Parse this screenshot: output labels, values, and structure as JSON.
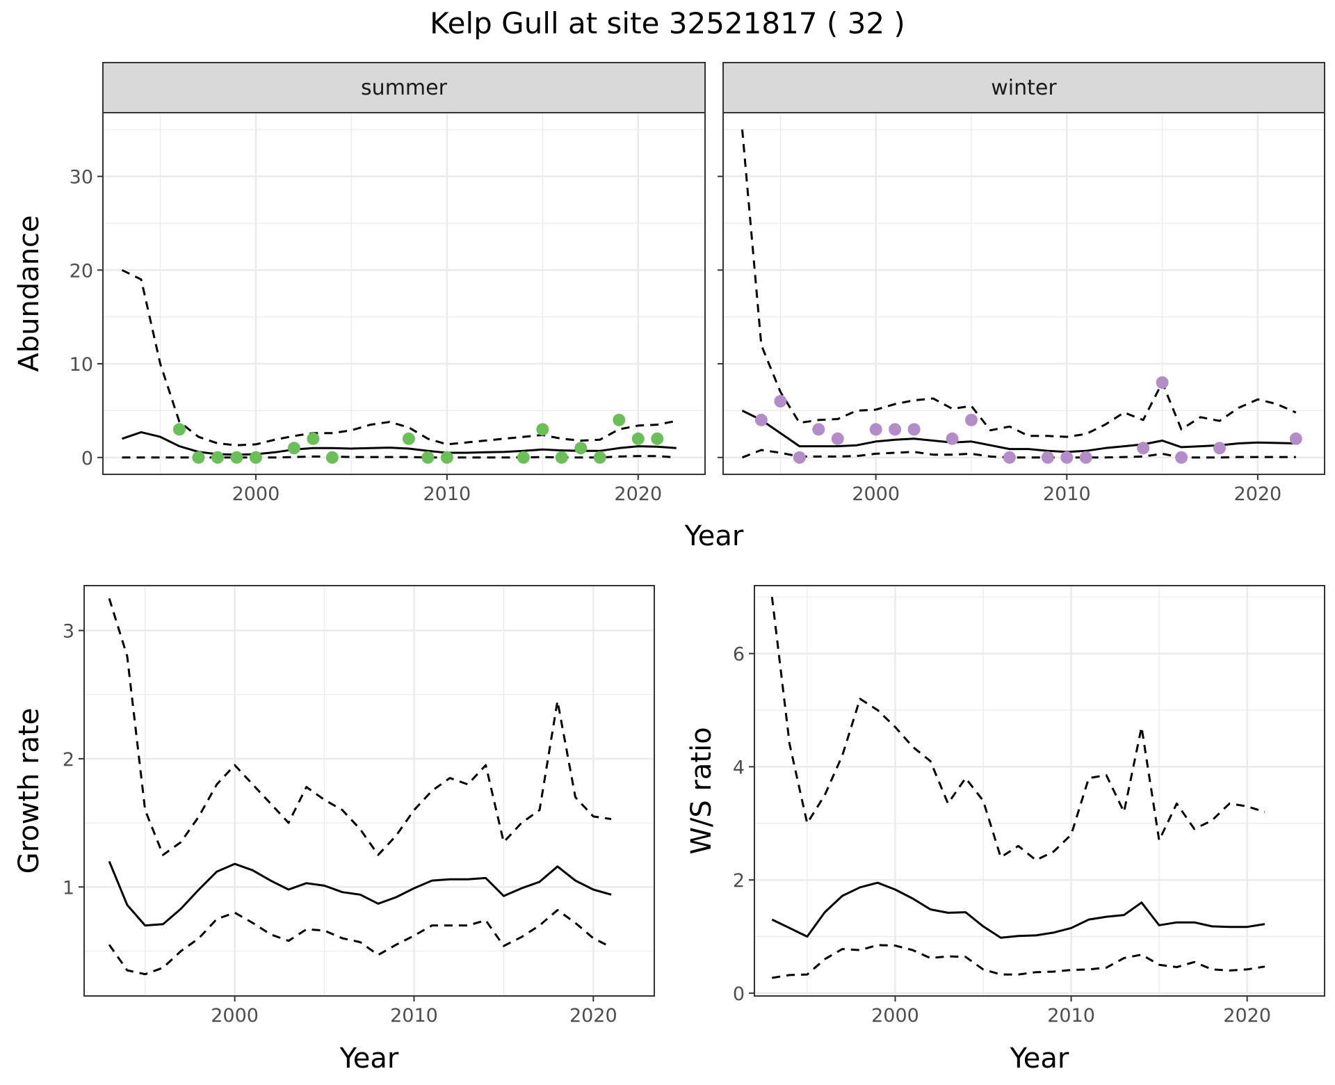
{
  "title": "Kelp Gull at site 32521817 ( 32 )",
  "colors": {
    "summer_points": "#6bbf59",
    "winter_points": "#b48cc8",
    "lines": "#000000",
    "grid": "#ebebeb",
    "strip": "#d9d9d9"
  },
  "chart_data": [
    {
      "type": "line",
      "facet": "summer",
      "xlabel": "Year",
      "ylabel": "Abundance",
      "xlim": [
        1992,
        2023.5
      ],
      "ylim": [
        -1.8,
        36.8
      ],
      "xticks": [
        2000,
        2010,
        2020
      ],
      "yticks": [
        0,
        10,
        20,
        30
      ],
      "grid": true,
      "x": [
        1993,
        1994,
        1995,
        1996,
        1997,
        1998,
        1999,
        2000,
        2001,
        2002,
        2003,
        2004,
        2005,
        2006,
        2007,
        2008,
        2009,
        2010,
        2011,
        2012,
        2013,
        2014,
        2015,
        2016,
        2017,
        2018,
        2019,
        2020,
        2021,
        2022
      ],
      "series": [
        {
          "role": "upper",
          "style": "dashed",
          "values": [
            20,
            19,
            10,
            3.8,
            2.2,
            1.5,
            1.3,
            1.4,
            1.9,
            2.3,
            2.6,
            2.6,
            2.9,
            3.5,
            3.8,
            3.2,
            2.0,
            1.4,
            1.6,
            1.8,
            2.0,
            2.2,
            2.4,
            2.0,
            1.8,
            1.9,
            3.0,
            3.4,
            3.5,
            3.9
          ]
        },
        {
          "role": "estimate",
          "style": "solid",
          "values": [
            2.0,
            2.7,
            2.2,
            1.2,
            0.6,
            0.35,
            0.3,
            0.35,
            0.55,
            0.85,
            1.0,
            1.0,
            0.95,
            1.0,
            1.05,
            0.95,
            0.7,
            0.5,
            0.5,
            0.55,
            0.6,
            0.7,
            0.85,
            0.75,
            0.7,
            0.7,
            1.0,
            1.2,
            1.15,
            1.0
          ]
        },
        {
          "role": "lower",
          "style": "dashed",
          "values": [
            0,
            0,
            0,
            0,
            0,
            0,
            0,
            0,
            0,
            0.05,
            0.1,
            0.1,
            0.05,
            0.05,
            0.05,
            0.05,
            0,
            0,
            0,
            0,
            0,
            0,
            0.05,
            0,
            0,
            0,
            0.1,
            0.15,
            0.15,
            0
          ]
        }
      ],
      "points": {
        "x": [
          1996,
          1997,
          1998,
          1999,
          2000,
          2002,
          2003,
          2004,
          2008,
          2009,
          2010,
          2014,
          2015,
          2016,
          2017,
          2018,
          2019,
          2020,
          2021
        ],
        "y": [
          3,
          0,
          0,
          0,
          0,
          1,
          2,
          0,
          2,
          0,
          0,
          0,
          3,
          0,
          1,
          0,
          4,
          2,
          2
        ]
      }
    },
    {
      "type": "line",
      "facet": "winter",
      "xlabel": "Year",
      "ylabel": "Abundance",
      "xlim": [
        1992,
        2023.5
      ],
      "ylim": [
        -1.8,
        36.8
      ],
      "xticks": [
        2000,
        2010,
        2020
      ],
      "yticks": [
        0,
        10,
        20,
        30
      ],
      "grid": true,
      "x": [
        1993,
        1994,
        1995,
        1996,
        1997,
        1998,
        1999,
        2000,
        2001,
        2002,
        2003,
        2004,
        2005,
        2006,
        2007,
        2008,
        2009,
        2010,
        2011,
        2012,
        2013,
        2014,
        2015,
        2016,
        2017,
        2018,
        2019,
        2020,
        2021,
        2022
      ],
      "series": [
        {
          "role": "upper",
          "style": "dashed",
          "values": [
            35,
            12,
            7,
            3.7,
            4.0,
            4.1,
            5.0,
            5.1,
            5.7,
            6.1,
            6.3,
            5.2,
            5.5,
            2.9,
            3.3,
            2.3,
            2.3,
            2.2,
            2.5,
            3.5,
            4.8,
            4.0,
            8.0,
            3.0,
            4.3,
            3.9,
            5.3,
            6.2,
            5.7,
            4.8
          ]
        },
        {
          "role": "estimate",
          "style": "solid",
          "values": [
            5.0,
            4.0,
            2.6,
            1.2,
            1.2,
            1.2,
            1.3,
            1.7,
            1.9,
            2.0,
            1.8,
            1.6,
            1.7,
            1.3,
            0.9,
            0.9,
            0.7,
            0.6,
            0.7,
            1.0,
            1.2,
            1.4,
            1.8,
            1.1,
            1.2,
            1.3,
            1.5,
            1.6,
            1.55,
            1.5
          ]
        },
        {
          "role": "lower",
          "style": "dashed",
          "values": [
            0,
            0.8,
            0.5,
            0.1,
            0.1,
            0.1,
            0.15,
            0.4,
            0.5,
            0.6,
            0.3,
            0.3,
            0.4,
            0.1,
            0,
            0,
            0,
            0,
            0,
            0,
            0.05,
            0.1,
            0.4,
            0,
            0,
            0,
            0.05,
            0.05,
            0.05,
            0.05
          ]
        }
      ],
      "points": {
        "x": [
          1994,
          1995,
          1996,
          1997,
          1998,
          2000,
          2001,
          2002,
          2004,
          2005,
          2007,
          2009,
          2010,
          2011,
          2014,
          2015,
          2016,
          2018,
          2022
        ],
        "y": [
          4,
          6,
          0,
          3,
          2,
          3,
          3,
          3,
          2,
          4,
          0,
          0,
          0,
          0,
          1,
          8,
          0,
          1,
          2
        ]
      }
    },
    {
      "type": "line",
      "xlabel": "Year",
      "ylabel": "Growth rate",
      "xlim": [
        1991.6,
        2023.4
      ],
      "ylim": [
        0.15,
        3.35
      ],
      "xticks": [
        2000,
        2010,
        2020
      ],
      "yticks": [
        1,
        2,
        3
      ],
      "grid": true,
      "x": [
        1993,
        1994,
        1995,
        1996,
        1997,
        1998,
        1999,
        2000,
        2001,
        2002,
        2003,
        2004,
        2005,
        2006,
        2007,
        2008,
        2009,
        2010,
        2011,
        2012,
        2013,
        2014,
        2015,
        2016,
        2017,
        2018,
        2019,
        2020,
        2021
      ],
      "series": [
        {
          "role": "upper",
          "style": "dashed",
          "values": [
            3.25,
            2.8,
            1.6,
            1.25,
            1.35,
            1.55,
            1.8,
            1.95,
            1.8,
            1.65,
            1.5,
            1.78,
            1.68,
            1.6,
            1.45,
            1.25,
            1.4,
            1.6,
            1.75,
            1.85,
            1.8,
            1.95,
            1.35,
            1.5,
            1.6,
            2.45,
            1.7,
            1.55,
            1.53
          ]
        },
        {
          "role": "estimate",
          "style": "solid",
          "values": [
            1.2,
            0.86,
            0.7,
            0.71,
            0.83,
            0.98,
            1.12,
            1.18,
            1.13,
            1.05,
            0.98,
            1.03,
            1.01,
            0.96,
            0.94,
            0.87,
            0.92,
            0.99,
            1.05,
            1.06,
            1.06,
            1.07,
            0.93,
            0.99,
            1.04,
            1.16,
            1.05,
            0.98,
            0.94
          ]
        },
        {
          "role": "lower",
          "style": "dashed",
          "values": [
            0.55,
            0.35,
            0.32,
            0.37,
            0.5,
            0.6,
            0.75,
            0.8,
            0.72,
            0.63,
            0.58,
            0.67,
            0.66,
            0.6,
            0.57,
            0.47,
            0.55,
            0.62,
            0.7,
            0.7,
            0.7,
            0.74,
            0.54,
            0.61,
            0.7,
            0.82,
            0.72,
            0.6,
            0.53
          ]
        }
      ]
    },
    {
      "type": "line",
      "xlabel": "Year",
      "ylabel": "W/S ratio",
      "xlim": [
        1992,
        2024.4
      ],
      "ylim": [
        -0.05,
        7.2
      ],
      "xticks": [
        2000,
        2010,
        2020
      ],
      "yticks": [
        0,
        2,
        4,
        6
      ],
      "grid": true,
      "x": [
        1993,
        1994,
        1995,
        1996,
        1997,
        1998,
        1999,
        2000,
        2001,
        2002,
        2003,
        2004,
        2005,
        2006,
        2007,
        2008,
        2009,
        2010,
        2011,
        2012,
        2013,
        2014,
        2015,
        2016,
        2017,
        2018,
        2019,
        2020,
        2021
      ],
      "series": [
        {
          "role": "upper",
          "style": "dashed",
          "values": [
            7.0,
            4.4,
            3.0,
            3.5,
            4.2,
            5.2,
            5.0,
            4.7,
            4.35,
            4.1,
            3.35,
            3.8,
            3.4,
            2.4,
            2.6,
            2.35,
            2.5,
            2.8,
            3.8,
            3.85,
            3.2,
            4.7,
            2.7,
            3.35,
            2.9,
            3.05,
            3.35,
            3.3,
            3.2
          ]
        },
        {
          "role": "estimate",
          "style": "solid",
          "values": [
            1.3,
            1.15,
            1.0,
            1.43,
            1.72,
            1.87,
            1.95,
            1.83,
            1.67,
            1.48,
            1.42,
            1.43,
            1.18,
            0.98,
            1.01,
            1.02,
            1.07,
            1.15,
            1.3,
            1.35,
            1.38,
            1.6,
            1.2,
            1.25,
            1.25,
            1.18,
            1.17,
            1.17,
            1.22
          ]
        },
        {
          "role": "lower",
          "style": "dashed",
          "values": [
            0.27,
            0.32,
            0.33,
            0.6,
            0.78,
            0.76,
            0.85,
            0.84,
            0.76,
            0.62,
            0.65,
            0.64,
            0.42,
            0.33,
            0.33,
            0.37,
            0.38,
            0.41,
            0.42,
            0.45,
            0.62,
            0.68,
            0.5,
            0.46,
            0.55,
            0.42,
            0.4,
            0.42,
            0.47
          ]
        }
      ]
    }
  ],
  "facets": {
    "summer": "summer",
    "winter": "winter"
  }
}
